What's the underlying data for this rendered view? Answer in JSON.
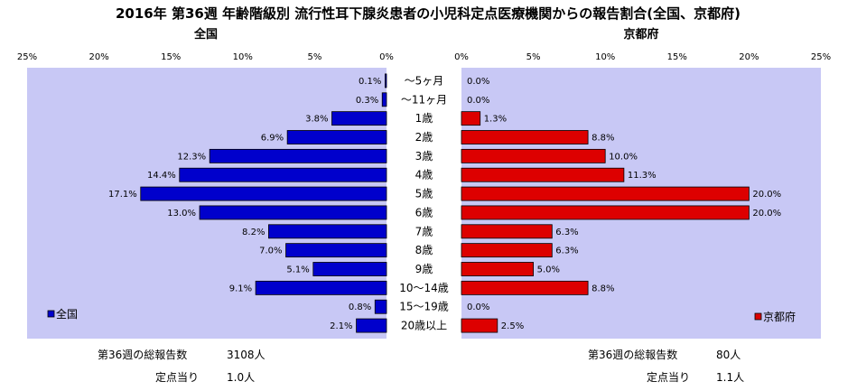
{
  "title": "2016年 第36週 年齢階級別 流行性耳下腺炎患者の小児科定点医療機関からの報告割合(全国、京都府)",
  "chart_data": {
    "type": "bar",
    "categories": [
      "～5ヶ月",
      "～11ヶ月",
      "1歳",
      "2歳",
      "3歳",
      "4歳",
      "5歳",
      "6歳",
      "7歳",
      "8歳",
      "9歳",
      "10～14歳",
      "15～19歳",
      "20歳以上"
    ],
    "series": [
      {
        "name": "全国",
        "color": "#0000cc",
        "values": [
          0.1,
          0.3,
          3.8,
          6.9,
          12.3,
          14.4,
          17.1,
          13.0,
          8.2,
          7.0,
          5.1,
          9.1,
          0.8,
          2.1
        ],
        "labels": [
          "0.1%",
          "0.3%",
          "3.8%",
          "6.9%",
          "12.3%",
          "14.4%",
          "17.1%",
          "13.0%",
          "8.2%",
          "7.0%",
          "5.1%",
          "9.1%",
          "0.8%",
          "2.1%"
        ]
      },
      {
        "name": "京都府",
        "color": "#dd0000",
        "values": [
          0.0,
          0.0,
          1.3,
          8.8,
          10.0,
          11.3,
          20.0,
          20.0,
          6.3,
          6.3,
          5.0,
          8.8,
          0.0,
          2.5
        ],
        "labels": [
          "0.0%",
          "0.0%",
          "1.3%",
          "8.8%",
          "10.0%",
          "11.3%",
          "20.0%",
          "20.0%",
          "6.3%",
          "6.3%",
          "5.0%",
          "8.8%",
          "0.0%",
          "2.5%"
        ]
      }
    ],
    "xlim": [
      0,
      25
    ],
    "ticks_left": [
      "25%",
      "20%",
      "15%",
      "10%",
      "5%",
      "0%"
    ],
    "ticks_right": [
      "0%",
      "5%",
      "10%",
      "15%",
      "20%",
      "25%"
    ],
    "plot_background": "#c8c8f5",
    "legend_position": "bottom"
  },
  "panels": {
    "left_title": "全国",
    "right_title": "京都府"
  },
  "notes": {
    "left_total_label": "第36週の総報告数",
    "left_total_value": "3108人",
    "left_per_label": "定点当り",
    "left_per_value": "1.0人",
    "right_total_label": "第36週の総報告数",
    "right_total_value": "80人",
    "right_per_label": "定点当り",
    "right_per_value": "1.1人"
  }
}
